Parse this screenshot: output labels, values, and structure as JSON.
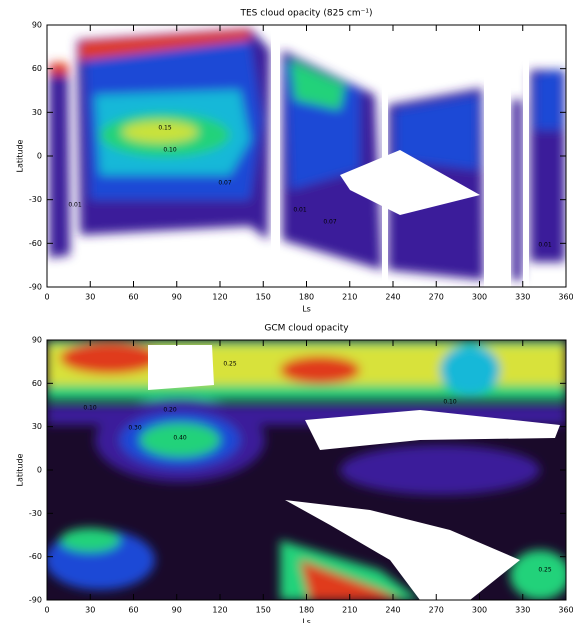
{
  "chart_data": [
    {
      "type": "contour",
      "title": "TES cloud opacity (825 cm⁻¹)",
      "x_label": "Ls",
      "y_label": "Latitude",
      "xlim": [
        0,
        360
      ],
      "xticks": [
        0,
        30,
        60,
        90,
        120,
        150,
        180,
        210,
        240,
        270,
        300,
        330,
        360
      ],
      "ylim": [
        -90,
        90
      ],
      "yticks": [
        -90,
        -60,
        -30,
        0,
        30,
        60,
        90
      ],
      "contour_labels": [
        "0.15",
        "0.10",
        "0.07",
        "0.01",
        "0.07",
        "0.01",
        "0.01"
      ]
    },
    {
      "type": "contour",
      "title": "GCM cloud opacity",
      "x_label": "Ls",
      "y_label": "Latitude",
      "xlim": [
        0,
        360
      ],
      "xticks": [
        0,
        30,
        60,
        90,
        120,
        150,
        180,
        210,
        240,
        270,
        300,
        330,
        360
      ],
      "ylim": [
        -90,
        90
      ],
      "yticks": [
        -90,
        -60,
        -30,
        0,
        30,
        60,
        90
      ],
      "contour_labels": [
        "0.40",
        "0.30",
        "0.20",
        "0.10",
        "0.25",
        "0.25",
        "0.10"
      ]
    }
  ]
}
